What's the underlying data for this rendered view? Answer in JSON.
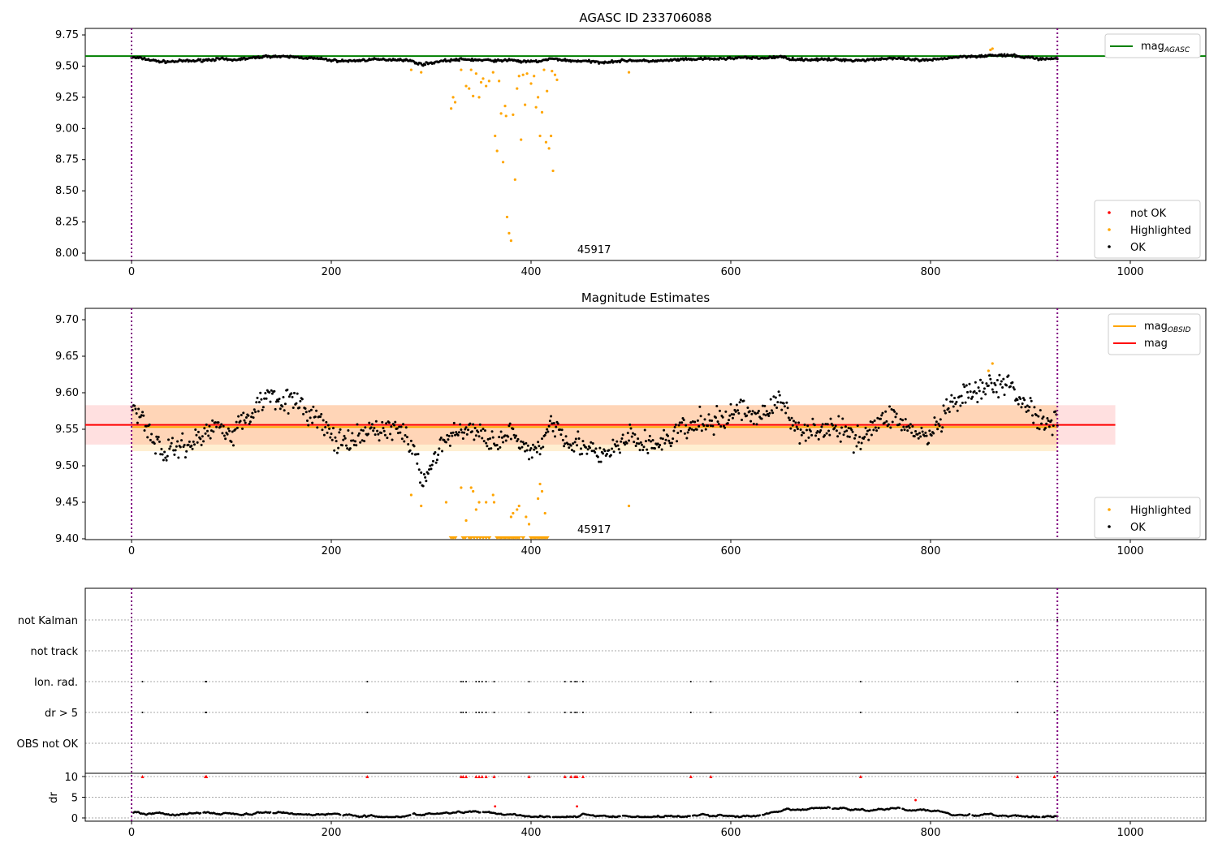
{
  "chart_data": [
    {
      "type": "scatter",
      "title": "AGASC ID 233706088",
      "xlim": [
        -46,
        1076
      ],
      "ylim": [
        7.94,
        9.77
      ],
      "xticks": [
        0,
        200,
        400,
        600,
        800,
        1000
      ],
      "yticks": [
        "8.00",
        "8.25",
        "8.50",
        "8.75",
        "9.00",
        "9.25",
        "9.50",
        "9.75"
      ],
      "annotation": "45917",
      "mag_agasc": 9.58,
      "obs_bounds": [
        0,
        927
      ],
      "legend_lines": [
        {
          "label": "mag",
          "sub": "AGASC",
          "color": "#008000"
        }
      ],
      "legend_points": [
        {
          "label": "not OK",
          "color": "#ff0000"
        },
        {
          "label": "Highlighted",
          "color": "#ffa500"
        },
        {
          "label": "OK",
          "color": "#000000"
        }
      ],
      "highlighted": [
        [
          280,
          9.47
        ],
        [
          290,
          9.45
        ],
        [
          320,
          9.16
        ],
        [
          322,
          9.25
        ],
        [
          324,
          9.21
        ],
        [
          330,
          9.47
        ],
        [
          335,
          9.34
        ],
        [
          338,
          9.32
        ],
        [
          340,
          9.47
        ],
        [
          342,
          9.26
        ],
        [
          345,
          9.44
        ],
        [
          348,
          9.25
        ],
        [
          350,
          9.37
        ],
        [
          352,
          9.4
        ],
        [
          355,
          9.34
        ],
        [
          358,
          9.38
        ],
        [
          362,
          9.45
        ],
        [
          364,
          8.94
        ],
        [
          366,
          8.82
        ],
        [
          368,
          9.38
        ],
        [
          370,
          9.12
        ],
        [
          372,
          8.73
        ],
        [
          374,
          9.18
        ],
        [
          375,
          9.1
        ],
        [
          376,
          8.29
        ],
        [
          378,
          8.16
        ],
        [
          380,
          8.1
        ],
        [
          382,
          9.11
        ],
        [
          384,
          8.59
        ],
        [
          386,
          9.32
        ],
        [
          388,
          9.42
        ],
        [
          390,
          8.91
        ],
        [
          392,
          9.43
        ],
        [
          394,
          9.19
        ],
        [
          396,
          9.44
        ],
        [
          400,
          9.36
        ],
        [
          403,
          9.42
        ],
        [
          405,
          9.17
        ],
        [
          407,
          9.25
        ],
        [
          409,
          8.94
        ],
        [
          411,
          9.13
        ],
        [
          413,
          9.47
        ],
        [
          415,
          8.89
        ],
        [
          416,
          9.3
        ],
        [
          418,
          8.84
        ],
        [
          420,
          8.94
        ],
        [
          421,
          9.46
        ],
        [
          422,
          8.66
        ],
        [
          424,
          9.43
        ],
        [
          426,
          9.39
        ],
        [
          498,
          9.45
        ],
        [
          860,
          9.63
        ],
        [
          862,
          9.64
        ]
      ]
    },
    {
      "type": "scatter",
      "title": "Magnitude Estimates",
      "xlim": [
        -46,
        1076
      ],
      "ylim": [
        9.4,
        9.715
      ],
      "xticks": [
        0,
        200,
        400,
        600,
        800,
        1000
      ],
      "yticks": [
        "9.40",
        "9.45",
        "9.50",
        "9.55",
        "9.60",
        "9.65",
        "9.70"
      ],
      "annotation": "45917",
      "mag": 9.556,
      "mag_band": [
        9.529,
        9.583
      ],
      "mag_obsid": 9.553,
      "obsid_band": [
        9.52,
        9.583
      ],
      "legend_lines": [
        {
          "label": "mag",
          "sub": "OBSID",
          "color": "#ffa500"
        },
        {
          "label": "mag",
          "sub": "",
          "color": "#ff0000"
        }
      ],
      "legend_points": [
        {
          "label": "Highlighted",
          "color": "#ffa500"
        },
        {
          "label": "OK",
          "color": "#000000"
        }
      ],
      "baseline": [
        [
          0,
          9.58
        ],
        [
          10,
          9.57
        ],
        [
          20,
          9.54
        ],
        [
          30,
          9.52
        ],
        [
          40,
          9.52
        ],
        [
          50,
          9.53
        ],
        [
          60,
          9.53
        ],
        [
          70,
          9.54
        ],
        [
          80,
          9.55
        ],
        [
          90,
          9.56
        ],
        [
          100,
          9.54
        ],
        [
          110,
          9.56
        ],
        [
          120,
          9.57
        ],
        [
          130,
          9.59
        ],
        [
          140,
          9.6
        ],
        [
          150,
          9.59
        ],
        [
          160,
          9.59
        ],
        [
          170,
          9.58
        ],
        [
          180,
          9.57
        ],
        [
          190,
          9.56
        ],
        [
          200,
          9.54
        ],
        [
          210,
          9.53
        ],
        [
          220,
          9.53
        ],
        [
          230,
          9.54
        ],
        [
          240,
          9.55
        ],
        [
          250,
          9.55
        ],
        [
          260,
          9.55
        ],
        [
          270,
          9.55
        ],
        [
          280,
          9.53
        ],
        [
          290,
          9.48
        ],
        [
          300,
          9.5
        ],
        [
          310,
          9.53
        ],
        [
          320,
          9.54
        ],
        [
          330,
          9.55
        ],
        [
          340,
          9.55
        ],
        [
          350,
          9.54
        ],
        [
          360,
          9.54
        ],
        [
          370,
          9.53
        ],
        [
          380,
          9.55
        ],
        [
          390,
          9.52
        ],
        [
          400,
          9.52
        ],
        [
          410,
          9.53
        ],
        [
          420,
          9.56
        ],
        [
          430,
          9.55
        ],
        [
          440,
          9.53
        ],
        [
          450,
          9.53
        ],
        [
          460,
          9.52
        ],
        [
          470,
          9.51
        ],
        [
          480,
          9.52
        ],
        [
          490,
          9.53
        ],
        [
          500,
          9.54
        ],
        [
          510,
          9.53
        ],
        [
          520,
          9.53
        ],
        [
          530,
          9.53
        ],
        [
          540,
          9.54
        ],
        [
          550,
          9.55
        ],
        [
          560,
          9.55
        ],
        [
          570,
          9.56
        ],
        [
          580,
          9.56
        ],
        [
          590,
          9.56
        ],
        [
          600,
          9.57
        ],
        [
          610,
          9.58
        ],
        [
          620,
          9.57
        ],
        [
          630,
          9.57
        ],
        [
          640,
          9.58
        ],
        [
          650,
          9.59
        ],
        [
          660,
          9.56
        ],
        [
          670,
          9.55
        ],
        [
          680,
          9.55
        ],
        [
          690,
          9.55
        ],
        [
          700,
          9.55
        ],
        [
          710,
          9.55
        ],
        [
          720,
          9.54
        ],
        [
          730,
          9.54
        ],
        [
          740,
          9.55
        ],
        [
          750,
          9.56
        ],
        [
          760,
          9.57
        ],
        [
          770,
          9.56
        ],
        [
          780,
          9.55
        ],
        [
          790,
          9.54
        ],
        [
          800,
          9.54
        ],
        [
          810,
          9.56
        ],
        [
          820,
          9.58
        ],
        [
          830,
          9.59
        ],
        [
          840,
          9.6
        ],
        [
          850,
          9.6
        ],
        [
          860,
          9.61
        ],
        [
          870,
          9.61
        ],
        [
          880,
          9.61
        ],
        [
          890,
          9.59
        ],
        [
          900,
          9.58
        ],
        [
          910,
          9.56
        ],
        [
          920,
          9.56
        ],
        [
          927,
          9.57
        ]
      ],
      "highlighted": [
        [
          280,
          9.46
        ],
        [
          290,
          9.445
        ],
        [
          315,
          9.45
        ],
        [
          330,
          9.47
        ],
        [
          335,
          9.425
        ],
        [
          340,
          9.47
        ],
        [
          342,
          9.465
        ],
        [
          345,
          9.44
        ],
        [
          348,
          9.45
        ],
        [
          355,
          9.45
        ],
        [
          362,
          9.46
        ],
        [
          363,
          9.45
        ],
        [
          380,
          9.43
        ],
        [
          382,
          9.435
        ],
        [
          386,
          9.44
        ],
        [
          388,
          9.445
        ],
        [
          395,
          9.43
        ],
        [
          398,
          9.42
        ],
        [
          407,
          9.455
        ],
        [
          409,
          9.475
        ],
        [
          411,
          9.465
        ],
        [
          414,
          9.435
        ],
        [
          498,
          9.445
        ],
        [
          858,
          9.63
        ],
        [
          862,
          9.64
        ]
      ],
      "clipped_below_x": [
        320,
        322,
        324,
        332,
        334,
        338,
        340,
        343,
        346,
        349,
        352,
        355,
        358,
        366,
        368,
        370,
        372,
        374,
        376,
        378,
        380,
        382,
        384,
        386,
        388,
        392,
        400,
        402,
        404,
        406,
        408,
        410,
        412,
        414,
        416
      ]
    },
    {
      "type": "scatter",
      "title": "",
      "xlim": [
        -46,
        1076
      ],
      "xticks": [
        0,
        200,
        400,
        600,
        800,
        1000
      ],
      "flags": [
        "not Kalman",
        "not track",
        "Ion. rad.",
        "dr > 5",
        "OBS not OK"
      ],
      "flag_x": [
        11,
        74,
        75,
        236,
        330,
        332,
        335,
        345,
        348,
        351,
        355,
        363,
        398,
        434,
        440,
        444,
        446,
        452,
        560,
        580,
        730,
        887,
        924
      ],
      "not_kalman_x": [
        927
      ],
      "dr_ylabel": "dr",
      "dr_yticks": [
        "0",
        "5",
        "10"
      ],
      "dr_outliers": [
        [
          364,
          2.8
        ],
        [
          446,
          2.8
        ],
        [
          785,
          4.3
        ]
      ]
    }
  ]
}
